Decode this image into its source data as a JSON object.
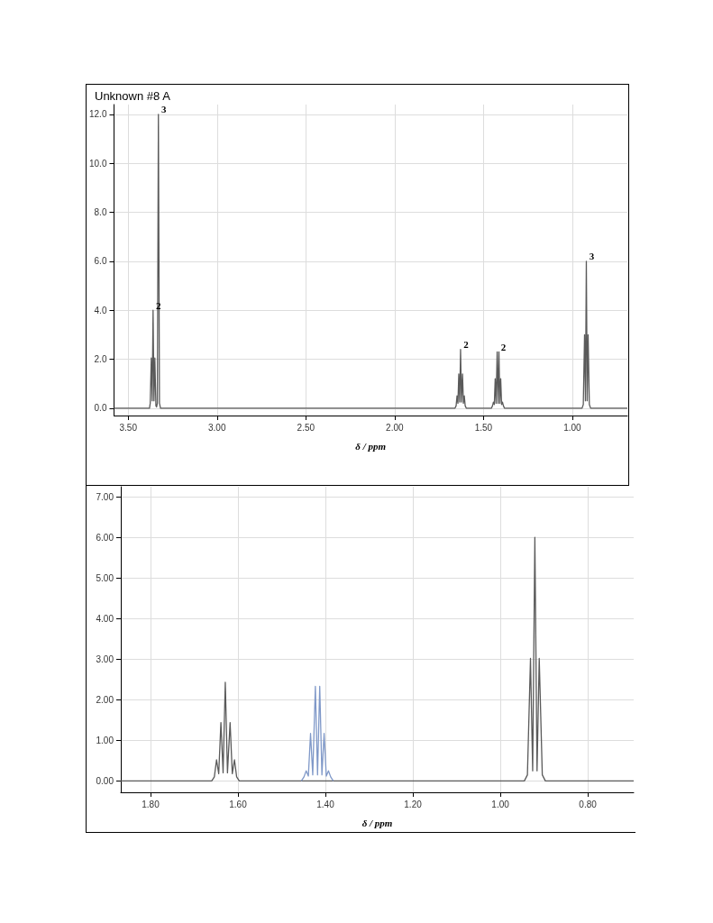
{
  "chart_data": [
    {
      "type": "line",
      "title": "Unknown #8 A",
      "xlabel": "δ / ppm",
      "xlim": [
        3.58,
        0.69
      ],
      "ylim": [
        -0.3,
        12.4
      ],
      "xticks": [
        {
          "value": 3.5,
          "label": "3.50"
        },
        {
          "value": 3.0,
          "label": "3.00"
        },
        {
          "value": 2.5,
          "label": "2.50"
        },
        {
          "value": 2.0,
          "label": "2.00"
        },
        {
          "value": 1.5,
          "label": "1.50"
        },
        {
          "value": 1.0,
          "label": "1.00"
        }
      ],
      "yticks": [
        {
          "value": 0,
          "label": "0.0"
        },
        {
          "value": 2,
          "label": "2.0"
        },
        {
          "value": 4,
          "label": "4.0"
        },
        {
          "value": 6,
          "label": "6.0"
        },
        {
          "value": 8,
          "label": "8.0"
        },
        {
          "value": 10,
          "label": "10.0"
        },
        {
          "value": 12,
          "label": "12.0"
        }
      ],
      "grid": true,
      "marker": "none",
      "series": [
        {
          "color": "#5a5a5a",
          "x": [
            3.58,
            3.38,
            3.376,
            3.37,
            3.365,
            3.36,
            3.355,
            3.35,
            3.344,
            3.34,
            3.336,
            3.33,
            3.324,
            3.318,
            1.66,
            1.654,
            1.649,
            1.644,
            1.639,
            1.634,
            1.629,
            1.624,
            1.618,
            1.613,
            1.608,
            1.603,
            1.597,
            1.455,
            1.449,
            1.444,
            1.439,
            1.434,
            1.429,
            1.423,
            1.418,
            1.413,
            1.408,
            1.403,
            1.398,
            1.393,
            1.388,
            1.382,
            0.945,
            0.938,
            0.931,
            0.926,
            0.921,
            0.916,
            0.911,
            0.904,
            0.897,
            0.69
          ],
          "values": [
            0,
            0,
            0.2,
            2.05,
            0.3,
            4.0,
            0.3,
            2.05,
            0.1,
            0.05,
            0.2,
            12.0,
            0.2,
            0,
            0,
            0.1,
            0.5,
            0.2,
            1.4,
            0.25,
            2.4,
            0.25,
            1.4,
            0.2,
            0.5,
            0.1,
            0,
            0,
            0.1,
            0.25,
            0.15,
            1.2,
            0.2,
            2.3,
            0.2,
            2.3,
            0.2,
            1.2,
            0.15,
            0.25,
            0.1,
            0,
            0,
            0.15,
            3.0,
            0.3,
            6.0,
            0.3,
            3.0,
            0.15,
            0,
            0
          ]
        }
      ],
      "annotations": [
        {
          "text": "2",
          "x": 3.36,
          "y": 4.0
        },
        {
          "text": "3",
          "x": 3.33,
          "y": 12.0
        },
        {
          "text": "2",
          "x": 1.629,
          "y": 2.4
        },
        {
          "text": "2",
          "x": 1.418,
          "y": 2.3
        },
        {
          "text": "3",
          "x": 0.921,
          "y": 6.0
        }
      ]
    },
    {
      "type": "line",
      "xlabel": "δ / ppm",
      "xlim": [
        1.868,
        0.695
      ],
      "ylim": [
        -0.28,
        7.25
      ],
      "xticks": [
        {
          "value": 1.8,
          "label": "1.80"
        },
        {
          "value": 1.6,
          "label": "1.60"
        },
        {
          "value": 1.4,
          "label": "1.40"
        },
        {
          "value": 1.2,
          "label": "1.20"
        },
        {
          "value": 1.0,
          "label": "1.00"
        },
        {
          "value": 0.8,
          "label": "0.80"
        }
      ],
      "yticks": [
        {
          "value": 0,
          "label": "0.00"
        },
        {
          "value": 1,
          "label": "1.00"
        },
        {
          "value": 2,
          "label": "2.00"
        },
        {
          "value": 3,
          "label": "3.00"
        },
        {
          "value": 4,
          "label": "4.00"
        },
        {
          "value": 5,
          "label": "5.00"
        },
        {
          "value": 6,
          "label": "6.00"
        },
        {
          "value": 7,
          "label": "7.00"
        }
      ],
      "grid": true,
      "marker": "none",
      "series": [
        {
          "color": "#5a5a5a",
          "x": [
            1.868,
            1.66,
            1.654,
            1.649,
            1.644,
            1.639,
            1.634,
            1.629,
            1.624,
            1.618,
            1.613,
            1.608,
            1.603,
            1.597,
            1.455,
            1.382,
            0.945,
            0.938,
            0.931,
            0.926,
            0.921,
            0.916,
            0.911,
            0.904,
            0.897,
            0.695
          ],
          "values": [
            0,
            0,
            0.1,
            0.52,
            0.18,
            1.44,
            0.2,
            2.43,
            0.2,
            1.44,
            0.18,
            0.52,
            0.1,
            0,
            0,
            0,
            0,
            0.15,
            3.02,
            0.25,
            6.0,
            0.25,
            3.02,
            0.15,
            0,
            0
          ]
        },
        {
          "color": "#7f98c8",
          "x": [
            1.455,
            1.449,
            1.444,
            1.439,
            1.434,
            1.429,
            1.423,
            1.418,
            1.413,
            1.408,
            1.403,
            1.398,
            1.393,
            1.388,
            1.382
          ],
          "values": [
            0,
            0.1,
            0.25,
            0.12,
            1.17,
            0.15,
            2.33,
            0.15,
            2.33,
            0.15,
            1.17,
            0.12,
            0.25,
            0.1,
            0
          ]
        }
      ]
    }
  ]
}
